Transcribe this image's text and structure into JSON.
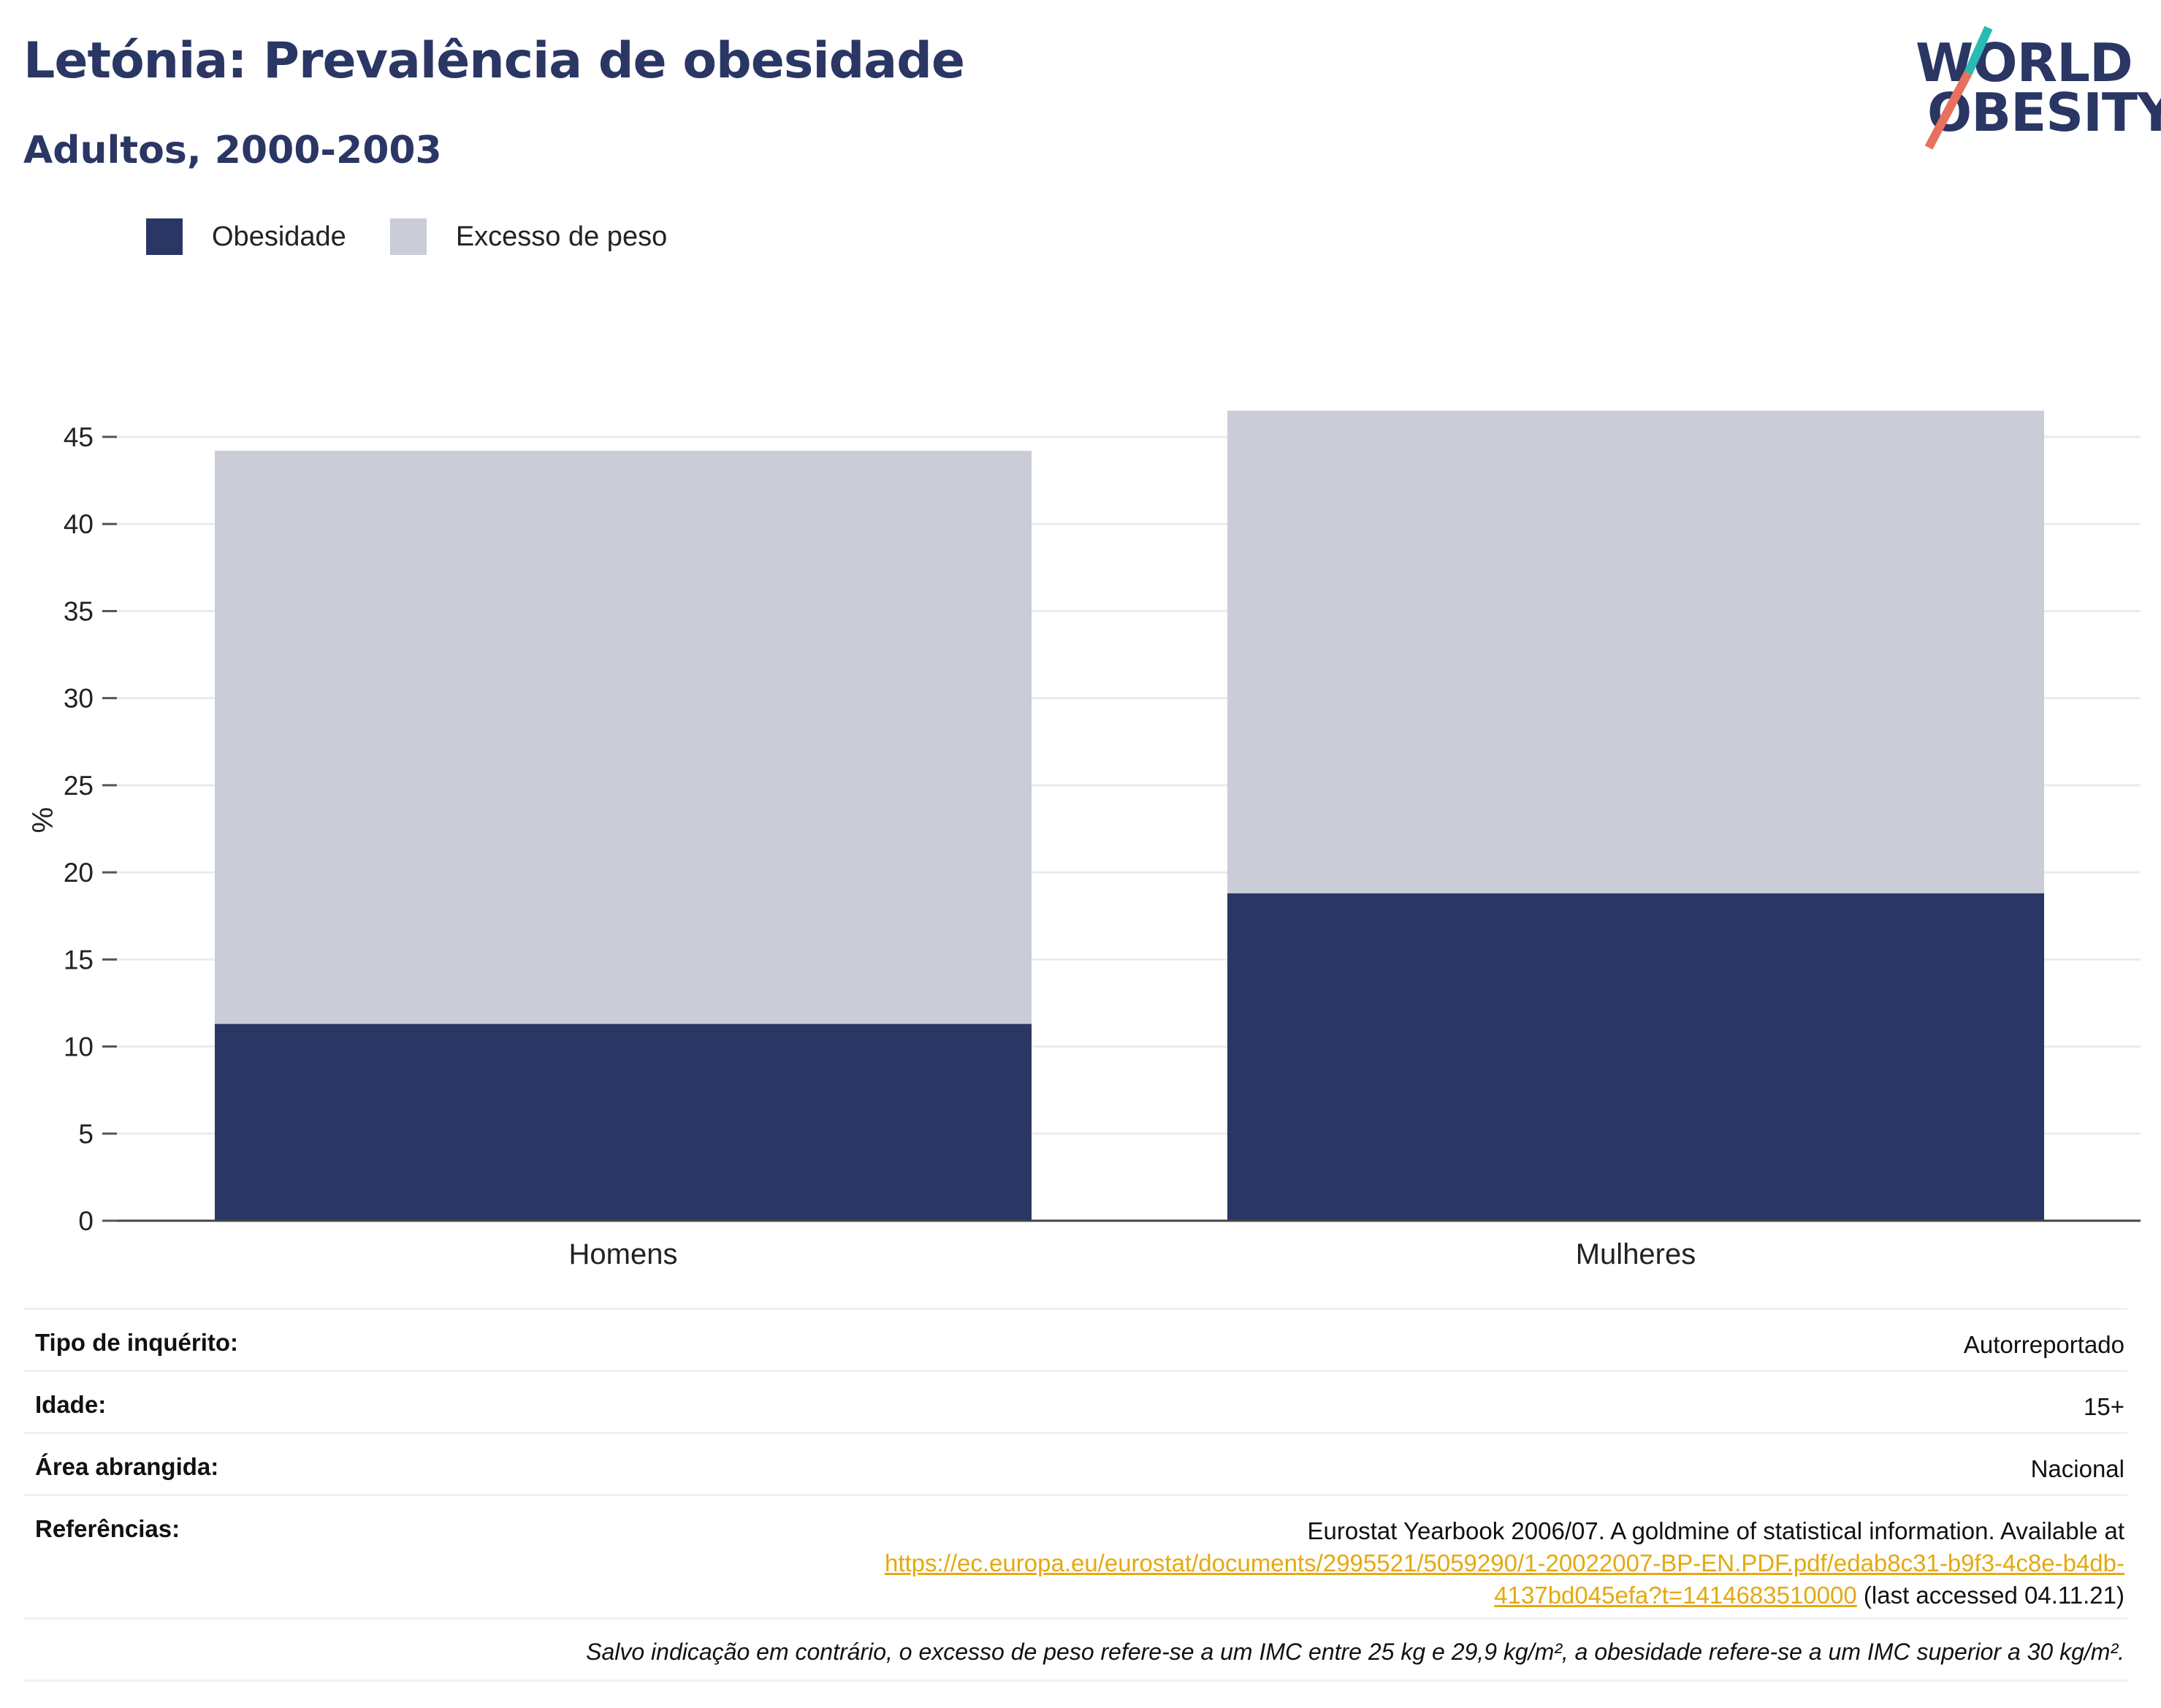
{
  "header": {
    "title": "Letónia: Prevalência de obesidade",
    "subtitle": "Adultos, 2000-2003"
  },
  "logo": {
    "line1": "WORLD",
    "line2": "OBESITY",
    "accent_teal": "#2bb9b5",
    "accent_coral": "#e8705f"
  },
  "legend": [
    {
      "label": "Obesidade",
      "color": "#2a3664"
    },
    {
      "label": "Excesso de peso",
      "color": "#cacdd8"
    }
  ],
  "chart_data": {
    "type": "bar",
    "stacked": true,
    "categories": [
      "Homens",
      "Mulheres"
    ],
    "series": [
      {
        "name": "Obesidade",
        "values": [
          11.3,
          18.8
        ],
        "color": "#2a3664"
      },
      {
        "name": "Excesso de peso",
        "values": [
          32.9,
          27.7
        ],
        "color": "#cacdd8"
      }
    ],
    "ylabel": "%",
    "ylim": [
      0,
      47
    ],
    "yticks": [
      0,
      5,
      10,
      15,
      20,
      25,
      30,
      35,
      40,
      45
    ],
    "grid": true,
    "legend_position": "top-left"
  },
  "info": {
    "rows": [
      {
        "key": "Tipo de inquérito:",
        "value": "Autorreportado"
      },
      {
        "key": "Idade:",
        "value": "15+"
      },
      {
        "key": "Área abrangida:",
        "value": "Nacional"
      }
    ],
    "references": {
      "key": "Referências:",
      "text_before": "Eurostat Yearbook 2006/07. A goldmine of statistical information. Available at",
      "link_line1": "https://ec.europa.eu/eurostat/documents/2995521/5059290/1-20022007-BP-EN.PDF.pdf/edab8c31-b9f3-4c8e-b4db-",
      "link_line2": "4137bd045efa?t=1414683510000",
      "text_after": " (last accessed 04.11.21)"
    },
    "note": "Salvo indicação em contrário, o excesso de peso refere-se a um IMC entre 25 kg e 29,9 kg/m², a obesidade refere-se a um IMC superior a 30 kg/m²."
  }
}
